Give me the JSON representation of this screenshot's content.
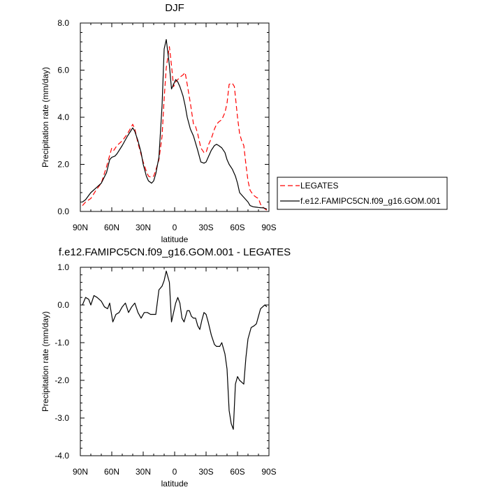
{
  "chart_data": [
    {
      "type": "line",
      "title": "DJF",
      "xlabel": "latitude",
      "ylabel": "Precipitation rate (mm/day)",
      "xlim": [
        90,
        -90
      ],
      "ylim": [
        0,
        8
      ],
      "x_ticks": [
        90,
        60,
        30,
        0,
        -30,
        -60,
        -90
      ],
      "x_tick_labels": [
        "90N",
        "60N",
        "30N",
        "0",
        "30S",
        "60S",
        "90S"
      ],
      "y_ticks": [
        0,
        2,
        4,
        6,
        8
      ],
      "y_tick_labels": [
        "0.0",
        "2.0",
        "4.0",
        "6.0",
        "8.0"
      ],
      "legend_position": "right",
      "series": [
        {
          "name": "LEGATES",
          "color": "#ff0000",
          "dash": "dashed",
          "x": [
            88,
            85,
            80,
            75,
            70,
            65,
            60,
            58,
            55,
            50,
            45,
            40,
            38,
            35,
            30,
            27,
            25,
            22,
            20,
            18,
            15,
            12,
            10,
            8,
            5,
            3,
            1,
            -1,
            -3,
            -5,
            -8,
            -10,
            -12,
            -15,
            -18,
            -20,
            -22,
            -25,
            -28,
            -30,
            -32,
            -35,
            -38,
            -40,
            -42,
            -45,
            -48,
            -50,
            -52,
            -55,
            -57,
            -60,
            -62,
            -64,
            -66,
            -68,
            -70,
            -72,
            -75,
            -78,
            -80,
            -82,
            -85,
            -88
          ],
          "y": [
            0.25,
            0.4,
            0.55,
            0.9,
            1.2,
            1.9,
            2.7,
            2.6,
            2.8,
            3.0,
            3.3,
            3.7,
            3.5,
            2.9,
            2.1,
            1.7,
            1.5,
            1.45,
            1.5,
            1.75,
            2.2,
            3.2,
            4.8,
            6.1,
            7.0,
            6.2,
            5.3,
            5.5,
            5.6,
            5.7,
            5.8,
            5.9,
            5.4,
            4.6,
            3.7,
            3.6,
            3.3,
            2.7,
            2.5,
            2.5,
            2.8,
            3.1,
            3.5,
            3.7,
            3.8,
            3.9,
            4.2,
            4.6,
            5.4,
            5.45,
            5.3,
            4.0,
            3.3,
            3.0,
            2.8,
            2.0,
            1.3,
            0.9,
            0.7,
            0.6,
            0.55,
            0.3,
            0.15,
            0.05
          ]
        },
        {
          "name": "f.e12.FAMIPC5CN.f09_g16.GOM.001",
          "color": "#000000",
          "dash": "solid",
          "x": [
            88,
            85,
            80,
            75,
            70,
            65,
            62,
            60,
            57,
            55,
            50,
            45,
            40,
            38,
            35,
            32,
            30,
            27,
            25,
            22,
            20,
            18,
            15,
            12,
            10,
            8,
            5,
            3,
            1,
            -1,
            -3,
            -5,
            -8,
            -10,
            -12,
            -15,
            -18,
            -20,
            -22,
            -25,
            -28,
            -30,
            -32,
            -35,
            -38,
            -40,
            -42,
            -45,
            -48,
            -50,
            -52,
            -55,
            -58,
            -60,
            -62,
            -65,
            -68,
            -70,
            -72,
            -75,
            -78,
            -80,
            -82,
            -85,
            -88
          ],
          "y": [
            0.4,
            0.5,
            0.8,
            1.0,
            1.2,
            1.65,
            2.2,
            2.3,
            2.35,
            2.45,
            2.8,
            3.2,
            3.55,
            3.4,
            3.0,
            2.5,
            2.0,
            1.5,
            1.3,
            1.2,
            1.3,
            1.6,
            2.3,
            4.5,
            6.9,
            7.3,
            6.2,
            5.2,
            5.4,
            5.6,
            5.5,
            5.3,
            4.9,
            4.5,
            4.0,
            3.5,
            3.2,
            2.9,
            2.6,
            2.1,
            2.05,
            2.1,
            2.3,
            2.6,
            2.8,
            2.85,
            2.8,
            2.7,
            2.5,
            2.2,
            2.0,
            1.8,
            1.5,
            1.2,
            0.8,
            0.65,
            0.5,
            0.4,
            0.25,
            0.2,
            0.18,
            0.17,
            0.16,
            0.15,
            0.1
          ]
        }
      ]
    },
    {
      "type": "line",
      "title": "f.e12.FAMIPC5CN.f09_g16.GOM.001 - LEGATES",
      "xlabel": "latitude",
      "ylabel": "Precipitation rate (mm/day)",
      "xlim": [
        90,
        -90
      ],
      "ylim": [
        -4,
        1
      ],
      "x_ticks": [
        90,
        60,
        30,
        0,
        -30,
        -60,
        -90
      ],
      "x_tick_labels": [
        "90N",
        "60N",
        "30N",
        "0",
        "30S",
        "60S",
        "90S"
      ],
      "y_ticks": [
        -4,
        -3,
        -2,
        -1,
        0,
        1
      ],
      "y_tick_labels": [
        "-4.0",
        "-3.0",
        "-2.0",
        "-1.0",
        "0.0",
        "1.0"
      ],
      "series": [
        {
          "color": "#000000",
          "dash": "solid",
          "x": [
            88,
            85,
            82,
            80,
            77,
            74,
            70,
            67,
            64,
            62,
            59,
            56,
            53,
            50,
            47,
            44,
            41,
            38,
            35,
            32,
            29,
            26,
            23,
            20,
            18,
            15,
            12,
            10,
            8,
            5,
            3,
            1,
            -1,
            -3,
            -5,
            -7,
            -9,
            -12,
            -14,
            -16,
            -18,
            -20,
            -22,
            -24,
            -26,
            -28,
            -30,
            -32,
            -35,
            -38,
            -40,
            -43,
            -45,
            -48,
            -50,
            -52,
            -54,
            -56,
            -58,
            -60,
            -62,
            -64,
            -66,
            -68,
            -70,
            -73,
            -76,
            -78,
            -80,
            -82,
            -84,
            -86,
            -88
          ],
          "y": [
            0.0,
            0.2,
            0.15,
            0.0,
            0.25,
            0.2,
            0.1,
            -0.05,
            -0.1,
            0.05,
            -0.45,
            -0.25,
            -0.2,
            -0.05,
            0.05,
            -0.2,
            -0.05,
            0.05,
            -0.2,
            -0.35,
            -0.2,
            -0.2,
            -0.25,
            -0.25,
            -0.25,
            0.4,
            0.5,
            0.65,
            0.9,
            0.6,
            -0.45,
            -0.2,
            0.05,
            0.2,
            0.05,
            -0.35,
            -0.45,
            -0.15,
            -0.15,
            -0.3,
            -0.35,
            -0.35,
            -0.55,
            -0.65,
            -0.4,
            -0.2,
            -0.25,
            -0.45,
            -0.8,
            -1.05,
            -1.1,
            -1.1,
            -1.0,
            -1.3,
            -1.7,
            -2.8,
            -3.15,
            -3.3,
            -2.1,
            -1.9,
            -2.0,
            -2.05,
            -2.1,
            -1.4,
            -0.9,
            -0.6,
            -0.55,
            -0.5,
            -0.3,
            -0.1,
            -0.05,
            0.0,
            -0.05
          ]
        }
      ]
    }
  ]
}
